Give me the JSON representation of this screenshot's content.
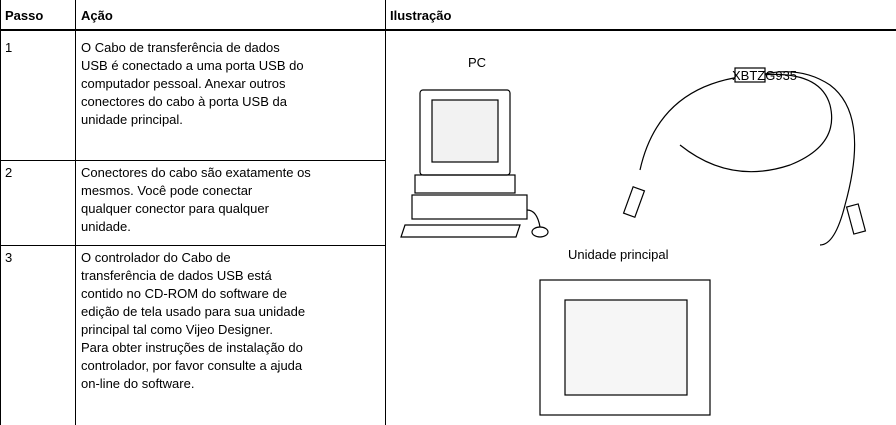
{
  "header": {
    "columns": [
      "Passo",
      "Ação",
      "Ilustração"
    ]
  },
  "table": {
    "rows": [
      {
        "step": "1",
        "lines": [
          "O Cabo de transferência de dados",
          "USB é conectado a uma porta USB do",
          "computador pessoal. Anexar outros",
          "conectores do cabo à porta USB da",
          "unidade principal."
        ]
      },
      {
        "step": "2",
        "lines": [
          "Conectores do cabo são exatamente os",
          "mesmos. Você pode conectar",
          "qualquer conector para qualquer",
          "unidade."
        ]
      },
      {
        "step": "3",
        "lines": [
          "O controlador do Cabo de",
          "transferência de dados USB está",
          "contido no CD-ROM do software de",
          "edição de tela usado para sua unidade",
          "principal tal como Vijeo Designer.",
          "Para obter instruções de instalação do",
          "controlador, por favor consulte a ajuda",
          "on-line do software."
        ]
      }
    ]
  },
  "illustration": {
    "pc_label": "PC",
    "cable_label": "XBTZG935",
    "unit_label": "Unidade principal"
  }
}
